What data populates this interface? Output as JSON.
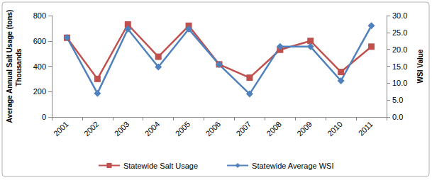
{
  "chart_data": {
    "type": "line",
    "ylabel": "Average Annual Salt Usage (tons)",
    "y2label": "WSI Value",
    "annotations": [
      "Thousands"
    ],
    "categories": [
      "2001",
      "2002",
      "2003",
      "2004",
      "2005",
      "2006",
      "2007",
      "2008",
      "2009",
      "2010",
      "2011"
    ],
    "series": [
      {
        "name": "Statewide Salt Usage",
        "color": "#c0504d",
        "marker": "square",
        "values": [
          625,
          300,
          730,
          475,
          720,
          415,
          310,
          530,
          600,
          355,
          555
        ]
      },
      {
        "name": "Statewide Average WSI",
        "color": "#4f81bd",
        "marker": "diamond",
        "axis": "y2",
        "values": [
          23.5,
          7.0,
          26.0,
          14.8,
          26.0,
          15.5,
          6.8,
          20.8,
          20.8,
          10.7,
          27.0
        ]
      }
    ],
    "ylim": [
      0,
      800
    ],
    "yticks": [
      0,
      200,
      400,
      600,
      800
    ],
    "y2lim": [
      0,
      30
    ],
    "y2ticks": [
      {
        "value": 0,
        "label": "0.0"
      },
      {
        "value": 5,
        "label": "5.0"
      },
      {
        "value": 10,
        "label": "10.0"
      },
      {
        "value": 15,
        "label": "15.0"
      },
      {
        "value": 20,
        "label": "20.0"
      },
      {
        "value": 25,
        "label": "25.0"
      },
      {
        "value": 30,
        "label": "30.0"
      }
    ],
    "grid": false,
    "legend": "bottom"
  }
}
